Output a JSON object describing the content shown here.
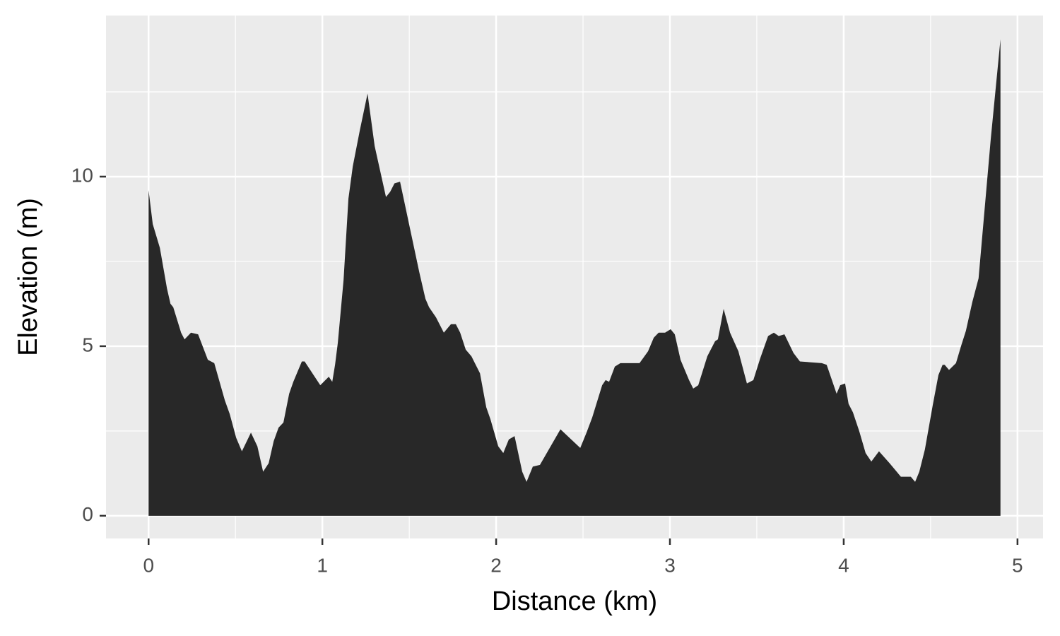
{
  "chart_data": {
    "type": "area",
    "x_label": "Distance (km)",
    "y_label": "Elevation (m)",
    "x": [
      0,
      0.024,
      0.065,
      0.106,
      0.126,
      0.142,
      0.187,
      0.207,
      0.244,
      0.285,
      0.341,
      0.378,
      0.439,
      0.467,
      0.504,
      0.537,
      0.589,
      0.626,
      0.659,
      0.691,
      0.72,
      0.748,
      0.776,
      0.809,
      0.833,
      0.882,
      0.898,
      0.988,
      1.037,
      1.057,
      1.073,
      1.089,
      1.122,
      1.15,
      1.175,
      1.215,
      1.26,
      1.301,
      1.366,
      1.39,
      1.415,
      1.447,
      1.557,
      1.593,
      1.614,
      1.654,
      1.699,
      1.74,
      1.768,
      1.793,
      1.825,
      1.858,
      1.907,
      1.943,
      1.967,
      2.012,
      2.041,
      2.073,
      2.106,
      2.15,
      2.175,
      2.211,
      2.252,
      2.37,
      2.484,
      2.52,
      2.553,
      2.61,
      2.63,
      2.65,
      2.683,
      2.715,
      2.825,
      2.874,
      2.907,
      2.935,
      2.972,
      3.004,
      3.028,
      3.061,
      3.11,
      3.134,
      3.163,
      3.215,
      3.26,
      3.276,
      3.309,
      3.346,
      3.394,
      3.443,
      3.48,
      3.52,
      3.565,
      3.598,
      3.626,
      3.659,
      3.711,
      3.748,
      3.874,
      3.902,
      3.959,
      3.98,
      4.008,
      4.028,
      4.053,
      4.089,
      4.126,
      4.159,
      4.203,
      4.264,
      4.329,
      4.386,
      4.411,
      4.435,
      4.467,
      4.512,
      4.545,
      4.569,
      4.581,
      4.606,
      4.646,
      4.675,
      4.703,
      4.74,
      4.776,
      4.846,
      4.902
    ],
    "values": [
      9.6,
      8.6,
      7.9,
      6.7,
      6.25,
      6.15,
      5.4,
      5.2,
      5.4,
      5.35,
      4.6,
      4.5,
      3.4,
      3.0,
      2.3,
      1.9,
      2.45,
      2.05,
      1.3,
      1.55,
      2.2,
      2.6,
      2.75,
      3.6,
      3.95,
      4.55,
      4.55,
      3.85,
      4.1,
      3.95,
      4.45,
      5.1,
      6.95,
      9.35,
      10.3,
      11.35,
      12.45,
      10.9,
      9.4,
      9.55,
      9.8,
      9.85,
      7.2,
      6.4,
      6.15,
      5.85,
      5.4,
      5.65,
      5.65,
      5.4,
      4.9,
      4.7,
      4.2,
      3.2,
      2.85,
      2.05,
      1.85,
      2.25,
      2.35,
      1.3,
      1.0,
      1.45,
      1.5,
      2.55,
      2.0,
      2.45,
      2.9,
      3.85,
      4.0,
      3.95,
      4.4,
      4.5,
      4.5,
      4.85,
      5.25,
      5.4,
      5.4,
      5.5,
      5.35,
      4.6,
      4.0,
      3.75,
      3.85,
      4.7,
      5.15,
      5.2,
      6.1,
      5.4,
      4.85,
      3.9,
      4.0,
      4.65,
      5.3,
      5.4,
      5.3,
      5.35,
      4.8,
      4.55,
      4.5,
      4.45,
      3.6,
      3.85,
      3.9,
      3.3,
      3.05,
      2.5,
      1.85,
      1.6,
      1.9,
      1.55,
      1.15,
      1.15,
      1.0,
      1.3,
      1.95,
      3.25,
      4.15,
      4.45,
      4.45,
      4.3,
      4.5,
      5.0,
      5.45,
      6.3,
      7.0,
      11.1,
      14.05
    ],
    "color": "#282828",
    "xlim": [
      -0.245,
      5.147
    ],
    "ylim": [
      -0.67,
      14.75
    ],
    "xticks": [
      0,
      1,
      2,
      3,
      4,
      5
    ],
    "yticks": [
      0,
      5,
      10
    ],
    "grid": true
  }
}
